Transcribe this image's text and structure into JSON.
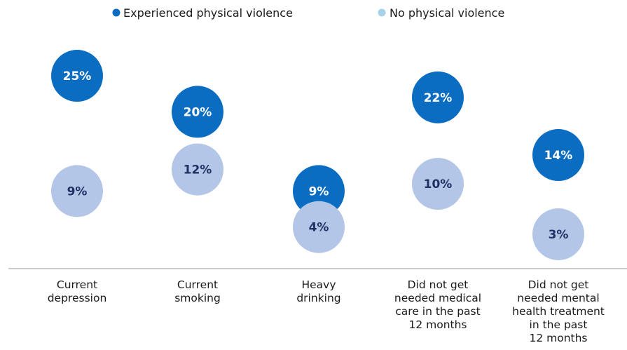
{
  "chart_data": {
    "type": "scatter",
    "categories": [
      [
        "Current",
        "depression"
      ],
      [
        "Current",
        "smoking"
      ],
      [
        "Heavy",
        "drinking"
      ],
      [
        "Did not get",
        "needed medical",
        "care in the past",
        "12 months"
      ],
      [
        "Did not get",
        "needed mental",
        "health treatment",
        "in the past",
        "12 months"
      ]
    ],
    "series": [
      {
        "name": "No physical violence",
        "values": [
          9,
          12,
          4,
          10,
          3
        ],
        "labels": [
          "9%",
          "12%",
          "4%",
          "10%",
          "3%"
        ]
      },
      {
        "name": "Experienced physical violence",
        "values": [
          25,
          20,
          9,
          22,
          14
        ],
        "labels": [
          "25%",
          "20%",
          "9%",
          "22%",
          "14%"
        ]
      }
    ],
    "ylim": [
      0,
      30
    ],
    "legend_position": "top-center",
    "grid": false,
    "colors": {
      "Experienced physical violence": "#0a6dc2",
      "No physical violence": "#b4c6e7",
      "experienced_label": "#ffffff",
      "no_violence_label": "#1f3264",
      "no_violence_legend_marker": "#a8d2ea",
      "axis": "#9a9a9a"
    }
  }
}
